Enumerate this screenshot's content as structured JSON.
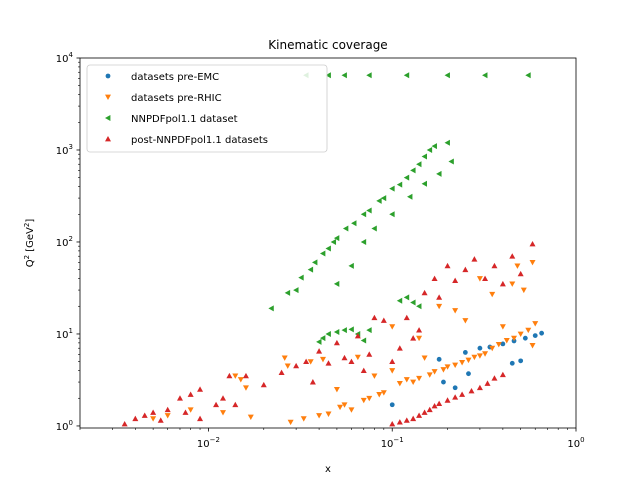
{
  "chart_data": {
    "type": "scatter",
    "title": "Kinematic coverage",
    "xlabel": "x",
    "ylabel_main": "Q",
    "ylabel_sup1": "2",
    "ylabel_unit_open": " [GeV",
    "ylabel_sup2": "2",
    "ylabel_unit_close": "]",
    "xscale": "log",
    "yscale": "log",
    "xlim": [
      0.002,
      1
    ],
    "ylim": [
      0.95,
      10000
    ],
    "x_ticks": [
      {
        "value": 0.01,
        "base": "10",
        "exp": "−2"
      },
      {
        "value": 0.1,
        "base": "10",
        "exp": "−1"
      },
      {
        "value": 1,
        "base": "10",
        "exp": "0"
      }
    ],
    "y_ticks": [
      {
        "value": 1,
        "base": "10",
        "exp": "0"
      },
      {
        "value": 10,
        "base": "10",
        "exp": "1"
      },
      {
        "value": 100,
        "base": "10",
        "exp": "2"
      },
      {
        "value": 1000,
        "base": "10",
        "exp": "3"
      },
      {
        "value": 10000,
        "base": "10",
        "exp": "4"
      }
    ],
    "legend_position": "top-left",
    "series": [
      {
        "name": "datasets pre-EMC",
        "marker": "circle",
        "color": "#1f77b4",
        "points": [
          [
            0.1,
            1.7
          ],
          [
            0.18,
            5.3
          ],
          [
            0.19,
            3.0
          ],
          [
            0.25,
            6.3
          ],
          [
            0.26,
            3.7
          ],
          [
            0.3,
            7.0
          ],
          [
            0.34,
            7.2
          ],
          [
            0.4,
            7.8
          ],
          [
            0.46,
            8.4
          ],
          [
            0.5,
            5.1
          ],
          [
            0.53,
            9.0
          ],
          [
            0.6,
            9.6
          ],
          [
            0.65,
            10.2
          ],
          [
            0.45,
            4.8
          ],
          [
            0.22,
            2.6
          ]
        ]
      },
      {
        "name": "datasets pre-RHIC",
        "marker": "triangle-down",
        "color": "#ff7f0e",
        "points": [
          [
            0.005,
            1.2
          ],
          [
            0.006,
            1.3
          ],
          [
            0.008,
            1.5
          ],
          [
            0.012,
            1.4
          ],
          [
            0.014,
            3.5
          ],
          [
            0.015,
            3.2
          ],
          [
            0.016,
            2.6
          ],
          [
            0.017,
            1.25
          ],
          [
            0.026,
            5.5
          ],
          [
            0.027,
            4.5
          ],
          [
            0.028,
            1.1
          ],
          [
            0.033,
            1.2
          ],
          [
            0.036,
            5.0
          ],
          [
            0.04,
            1.3
          ],
          [
            0.042,
            5.3
          ],
          [
            0.045,
            1.35
          ],
          [
            0.05,
            2.5
          ],
          [
            0.052,
            1.6
          ],
          [
            0.055,
            1.7
          ],
          [
            0.06,
            1.5
          ],
          [
            0.065,
            5.6
          ],
          [
            0.07,
            1.9
          ],
          [
            0.075,
            2.0
          ],
          [
            0.08,
            3.5
          ],
          [
            0.085,
            2.2
          ],
          [
            0.09,
            2.3
          ],
          [
            0.1,
            4.0
          ],
          [
            0.11,
            2.9
          ],
          [
            0.12,
            3.2
          ],
          [
            0.13,
            3.0
          ],
          [
            0.14,
            3.3
          ],
          [
            0.15,
            5.5
          ],
          [
            0.16,
            3.6
          ],
          [
            0.17,
            3.9
          ],
          [
            0.19,
            4.1
          ],
          [
            0.2,
            4.4
          ],
          [
            0.22,
            4.6
          ],
          [
            0.24,
            4.9
          ],
          [
            0.26,
            5.2
          ],
          [
            0.28,
            5.6
          ],
          [
            0.3,
            5.8
          ],
          [
            0.32,
            6.1
          ],
          [
            0.35,
            7.0
          ],
          [
            0.38,
            7.7
          ],
          [
            0.42,
            8.5
          ],
          [
            0.46,
            9.0
          ],
          [
            0.5,
            10.0
          ],
          [
            0.55,
            11.0
          ],
          [
            0.58,
            7.5
          ],
          [
            0.6,
            13.0
          ],
          [
            0.18,
            20.0
          ],
          [
            0.22,
            18.0
          ],
          [
            0.25,
            14.0
          ],
          [
            0.3,
            40.0
          ],
          [
            0.35,
            27.0
          ],
          [
            0.4,
            12.0
          ],
          [
            0.45,
            35.0
          ],
          [
            0.48,
            55.0
          ],
          [
            0.52,
            30.0
          ],
          [
            0.58,
            60.0
          ],
          [
            0.1,
            12.0
          ],
          [
            0.14,
            9.0
          ]
        ]
      },
      {
        "name": "NNPDFpol1.1 dataset",
        "marker": "triangle-left",
        "color": "#2ca02c",
        "points": [
          [
            0.022,
            19.0
          ],
          [
            0.027,
            28.0
          ],
          [
            0.032,
            41.0
          ],
          [
            0.036,
            50.0
          ],
          [
            0.038,
            60.0
          ],
          [
            0.042,
            75.0
          ],
          [
            0.045,
            85.0
          ],
          [
            0.048,
            100.0
          ],
          [
            0.05,
            110.0
          ],
          [
            0.056,
            140.0
          ],
          [
            0.062,
            160.0
          ],
          [
            0.07,
            200.0
          ],
          [
            0.075,
            220.0
          ],
          [
            0.085,
            280.0
          ],
          [
            0.09,
            300.0
          ],
          [
            0.1,
            380.0
          ],
          [
            0.11,
            420.0
          ],
          [
            0.12,
            500.0
          ],
          [
            0.13,
            600.0
          ],
          [
            0.14,
            700.0
          ],
          [
            0.15,
            850.0
          ],
          [
            0.16,
            1000.0
          ],
          [
            0.17,
            1100.0
          ],
          [
            0.2,
            1200.0
          ],
          [
            0.21,
            750.0
          ],
          [
            0.18,
            550.0
          ],
          [
            0.15,
            430.0
          ],
          [
            0.125,
            310.0
          ],
          [
            0.1,
            200.0
          ],
          [
            0.08,
            140.0
          ],
          [
            0.07,
            100.0
          ],
          [
            0.06,
            55.0
          ],
          [
            0.05,
            35.0
          ],
          [
            0.03,
            30.0
          ],
          [
            0.04,
            8.2
          ],
          [
            0.042,
            9.0
          ],
          [
            0.045,
            10.0
          ],
          [
            0.05,
            10.5
          ],
          [
            0.055,
            11.0
          ],
          [
            0.06,
            11.2
          ],
          [
            0.065,
            10.0
          ],
          [
            0.07,
            8.5
          ],
          [
            0.075,
            11.0
          ],
          [
            0.11,
            23.0
          ],
          [
            0.12,
            25.0
          ],
          [
            0.13,
            22.0
          ],
          [
            0.14,
            20.0
          ],
          [
            0.034,
            6500.0
          ],
          [
            0.045,
            6500.0
          ],
          [
            0.055,
            6500.0
          ],
          [
            0.075,
            6500.0
          ],
          [
            0.12,
            6500.0
          ],
          [
            0.2,
            6500.0
          ],
          [
            0.32,
            6500.0
          ],
          [
            0.55,
            6500.0
          ]
        ]
      },
      {
        "name": "post-NNPDFpol1.1 datasets",
        "marker": "triangle-up",
        "color": "#d62728",
        "points": [
          [
            0.0035,
            1.05
          ],
          [
            0.004,
            1.2
          ],
          [
            0.0045,
            1.3
          ],
          [
            0.005,
            1.4
          ],
          [
            0.0055,
            1.15
          ],
          [
            0.006,
            1.5
          ],
          [
            0.007,
            2.0
          ],
          [
            0.0075,
            1.4
          ],
          [
            0.008,
            2.2
          ],
          [
            0.009,
            2.5
          ],
          [
            0.009,
            1.2
          ],
          [
            0.011,
            1.7
          ],
          [
            0.012,
            2.0
          ],
          [
            0.013,
            3.5
          ],
          [
            0.014,
            1.7
          ],
          [
            0.016,
            3.5
          ],
          [
            0.02,
            2.8
          ],
          [
            0.025,
            3.8
          ],
          [
            0.03,
            4.5
          ],
          [
            0.034,
            5.0
          ],
          [
            0.037,
            3.0
          ],
          [
            0.04,
            6.5
          ],
          [
            0.045,
            4.8
          ],
          [
            0.05,
            8.0
          ],
          [
            0.055,
            5.5
          ],
          [
            0.06,
            5.0
          ],
          [
            0.065,
            9.5
          ],
          [
            0.07,
            4.0
          ],
          [
            0.075,
            6.0
          ],
          [
            0.08,
            15.0
          ],
          [
            0.09,
            14.0
          ],
          [
            0.1,
            5.0
          ],
          [
            0.11,
            7.0
          ],
          [
            0.12,
            15.0
          ],
          [
            0.13,
            9.0
          ],
          [
            0.14,
            11.0
          ],
          [
            0.15,
            28.0
          ],
          [
            0.17,
            40.0
          ],
          [
            0.18,
            25.0
          ],
          [
            0.2,
            55.0
          ],
          [
            0.22,
            38.0
          ],
          [
            0.25,
            50.0
          ],
          [
            0.28,
            65.0
          ],
          [
            0.32,
            40.0
          ],
          [
            0.36,
            55.0
          ],
          [
            0.4,
            35.0
          ],
          [
            0.45,
            70.0
          ],
          [
            0.5,
            45.0
          ],
          [
            0.58,
            95.0
          ],
          [
            0.1,
            1.05
          ],
          [
            0.11,
            1.1
          ],
          [
            0.12,
            1.15
          ],
          [
            0.13,
            1.2
          ],
          [
            0.14,
            1.3
          ],
          [
            0.15,
            1.4
          ],
          [
            0.16,
            1.5
          ],
          [
            0.17,
            1.65
          ],
          [
            0.18,
            1.75
          ],
          [
            0.2,
            1.9
          ],
          [
            0.22,
            2.05
          ],
          [
            0.24,
            2.2
          ],
          [
            0.27,
            2.4
          ],
          [
            0.3,
            2.6
          ],
          [
            0.33,
            2.9
          ],
          [
            0.36,
            3.3
          ],
          [
            0.4,
            3.6
          ]
        ]
      }
    ]
  }
}
